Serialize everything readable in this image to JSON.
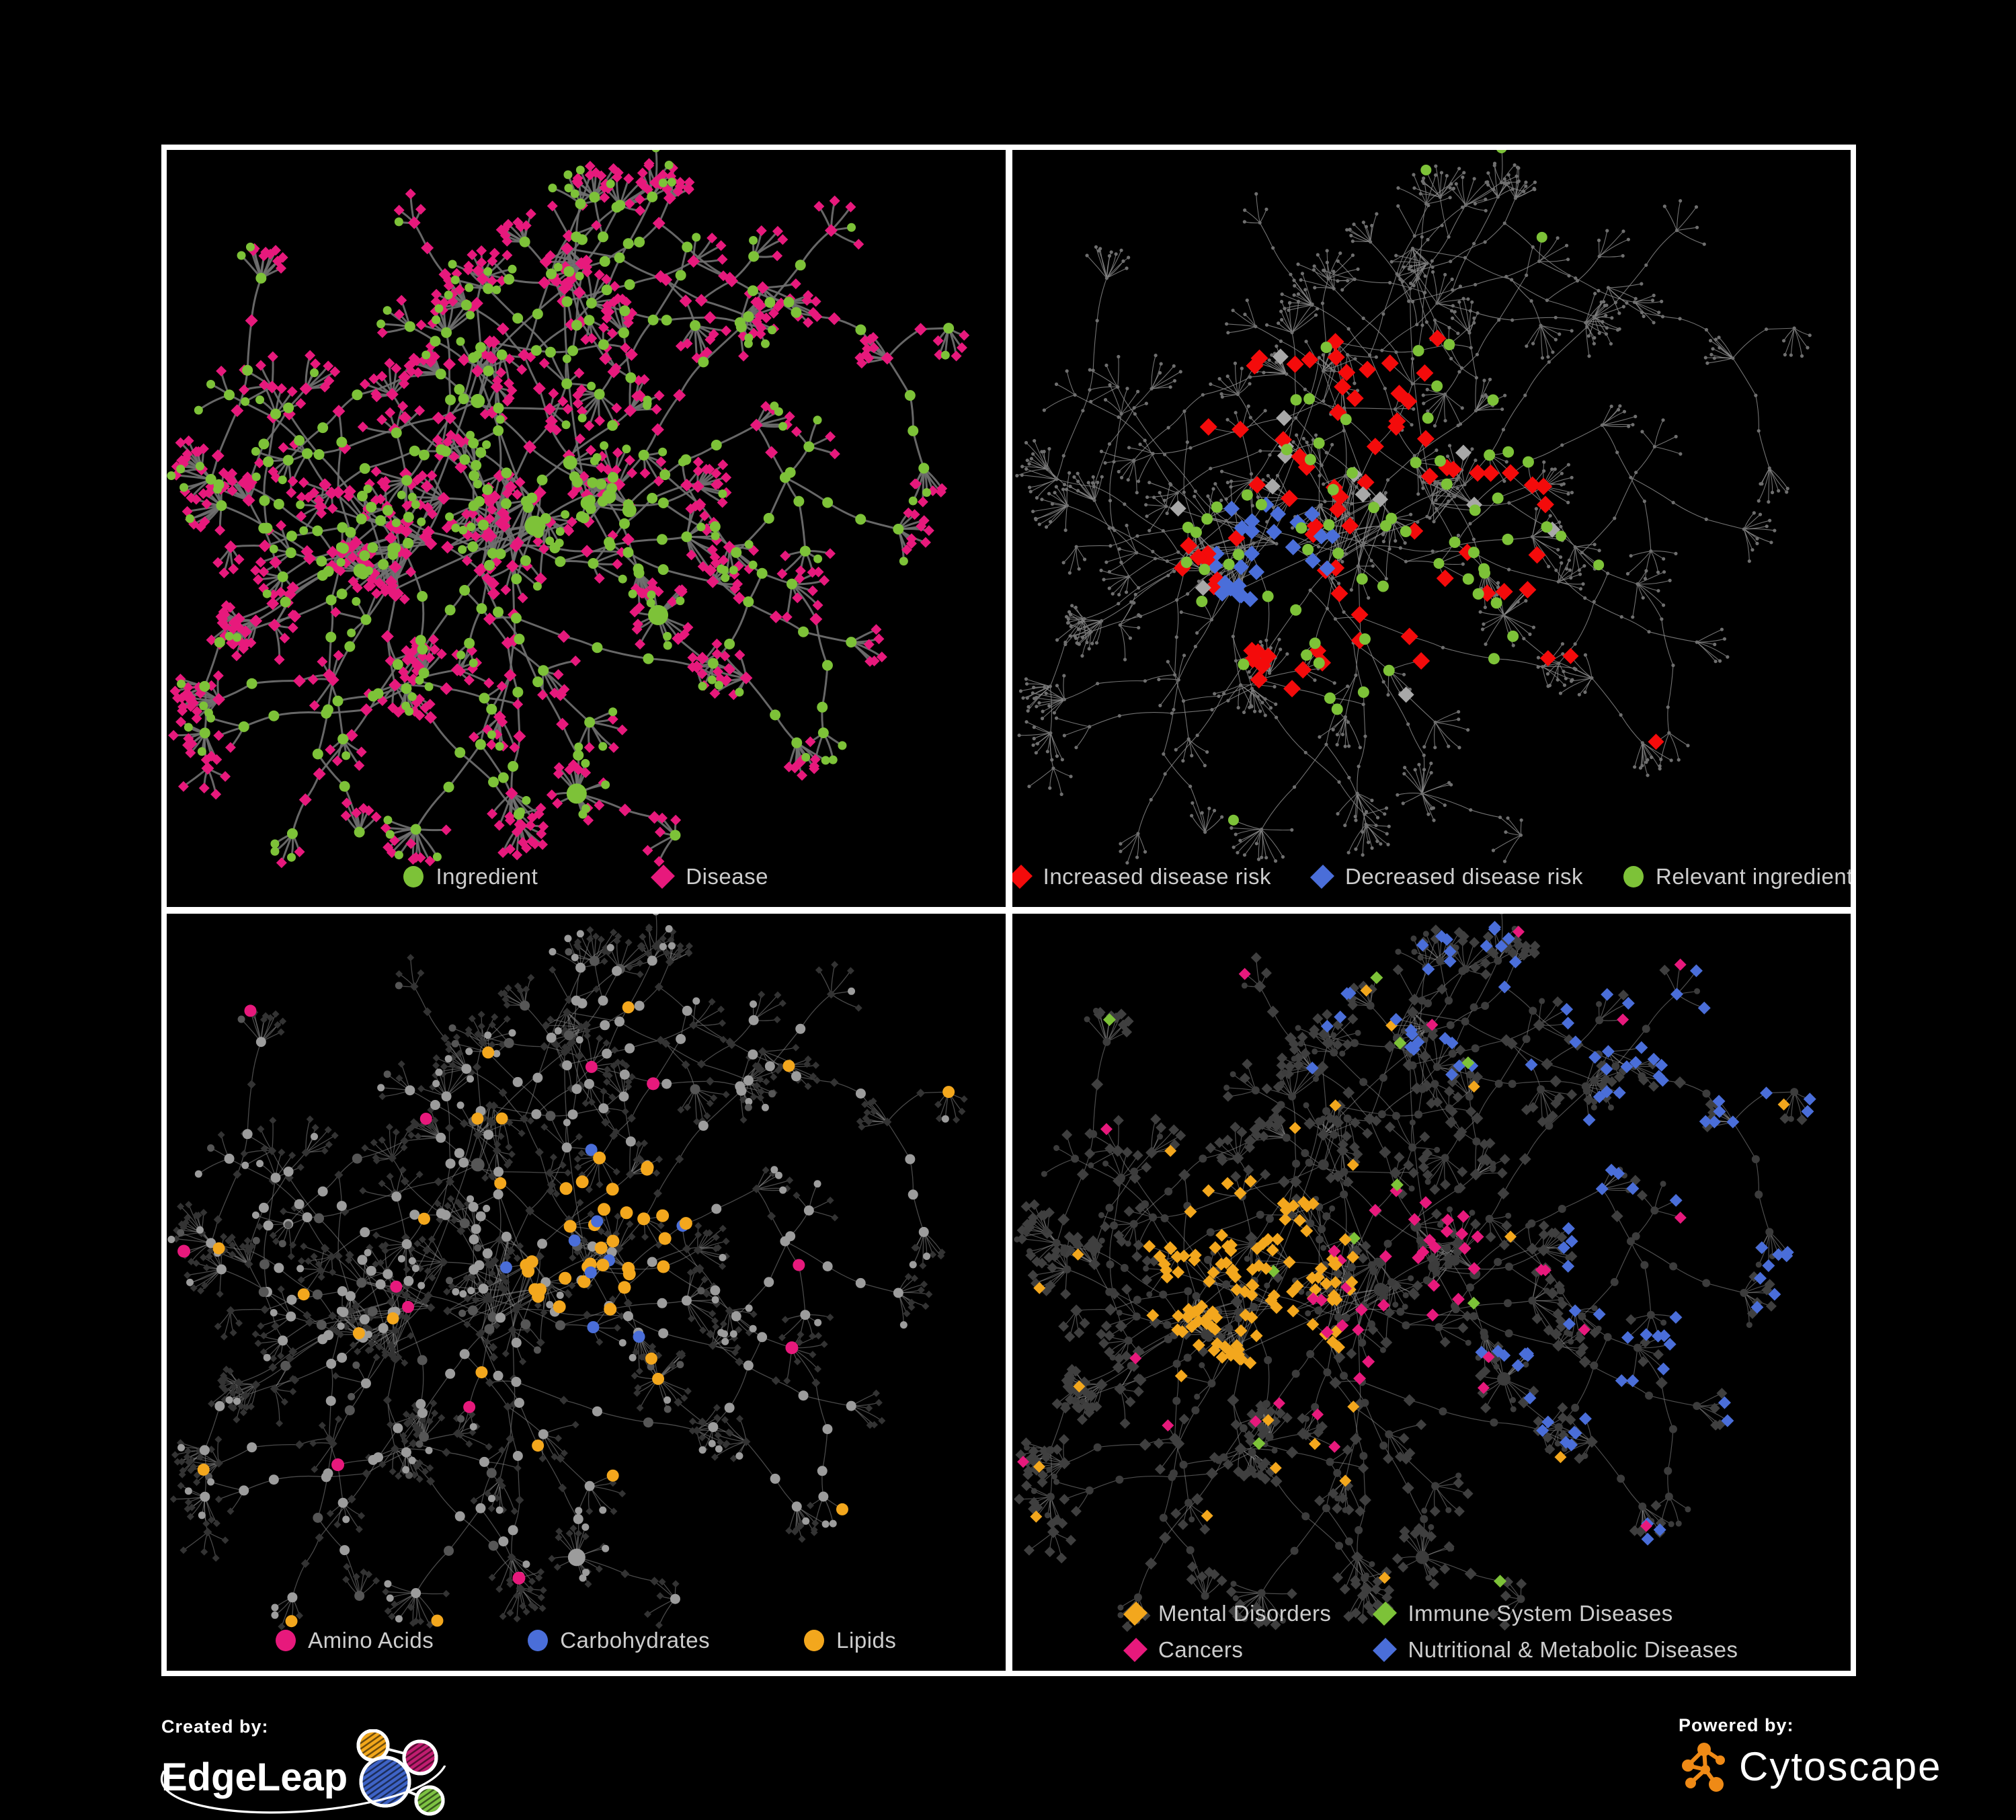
{
  "colors": {
    "background": "#000000",
    "panel_border": "#ffffff",
    "legend_text": "#cdcdcd",
    "green": "#7dc238",
    "pink": "#e7197c",
    "red": "#f40b0b",
    "blue": "#4a6ed9",
    "orange": "#f3a71d",
    "gray_highlight": "#a8a8a8"
  },
  "panels": [
    {
      "id": "ingredient-disease",
      "legend": [
        {
          "label": "Ingredient",
          "shape": "circle",
          "color": "#7dc238"
        },
        {
          "label": "Disease",
          "shape": "diamond",
          "color": "#e7197c"
        }
      ]
    },
    {
      "id": "disease-risk",
      "legend": [
        {
          "label": "Increased disease risk",
          "shape": "diamond",
          "color": "#f40b0b"
        },
        {
          "label": "Decreased disease risk",
          "shape": "diamond",
          "color": "#4a6ed9"
        },
        {
          "label": "Relevant ingredient",
          "shape": "circle",
          "color": "#7dc238"
        }
      ]
    },
    {
      "id": "nutrient-classes",
      "legend": [
        {
          "label": "Amino Acids",
          "shape": "circle",
          "color": "#e7197c"
        },
        {
          "label": "Carbohydrates",
          "shape": "circle",
          "color": "#4a6ed9"
        },
        {
          "label": "Lipids",
          "shape": "circle",
          "color": "#f3a71d"
        }
      ]
    },
    {
      "id": "disease-classes",
      "legend": [
        {
          "label": "Mental Disorders",
          "shape": "diamond",
          "color": "#f3a71d"
        },
        {
          "label": "Immune System Diseases",
          "shape": "diamond",
          "color": "#7dc238"
        },
        {
          "label": "Cancers",
          "shape": "diamond",
          "color": "#e7197c"
        },
        {
          "label": "Nutritional & Metabolic Diseases",
          "shape": "diamond",
          "color": "#4a6ed9"
        }
      ]
    }
  ],
  "network": {
    "node_shape_meaning": {
      "circle": "Ingredient",
      "diamond": "Disease"
    }
  },
  "footer": {
    "created_by": "Created by:",
    "edgeleap": "EdgeLeap",
    "powered_by": "Powered by:",
    "cytoscape": "Cytoscape"
  }
}
